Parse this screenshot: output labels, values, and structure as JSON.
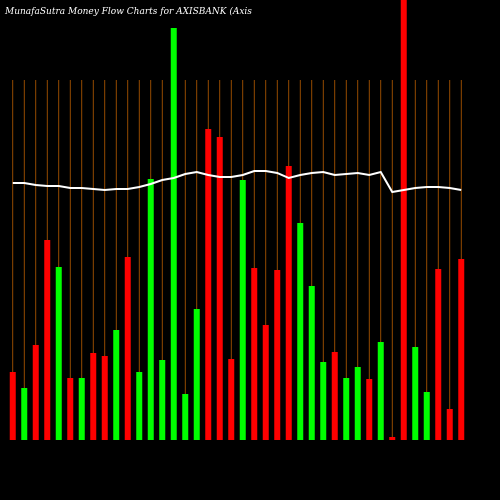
{
  "chart_data": {
    "type": "bar",
    "title": "MunafaSutra  Money Flow  Charts for AXISBANK  (Axis",
    "categories": [
      null,
      null,
      null,
      null,
      null,
      null,
      null,
      null,
      null,
      null,
      null,
      null,
      null,
      null,
      null,
      null,
      null,
      null,
      null,
      null,
      null,
      null,
      null,
      null,
      null,
      null,
      null,
      null,
      null,
      null,
      null,
      null,
      null,
      null,
      null,
      null,
      null,
      null,
      null,
      null
    ],
    "ylim": [
      0,
      440
    ],
    "series": [
      {
        "color": "bars",
        "values": [
          68,
          52,
          95,
          200,
          173,
          62,
          62,
          87,
          84,
          110,
          183,
          68,
          261,
          80,
          412,
          46,
          131,
          311,
          303,
          81,
          260,
          172,
          115,
          170,
          274,
          217,
          154,
          78,
          88,
          62,
          73,
          61,
          98,
          3,
          445,
          93,
          48,
          171,
          31,
          181
        ],
        "colors": [
          "#ff0000",
          "#00ff00",
          "#ff0000",
          "#ff0000",
          "#00ff00",
          "#ff0000",
          "#00ff00",
          "#ff0000",
          "#ff0000",
          "#00ff00",
          "#ff0000",
          "#00ff00",
          "#00ff00",
          "#00ff00",
          "#00ff00",
          "#00ff00",
          "#00ff00",
          "#ff0000",
          "#ff0000",
          "#ff0000",
          "#00ff00",
          "#ff0000",
          "#ff0000",
          "#ff0000",
          "#ff0000",
          "#00ff00",
          "#00ff00",
          "#00ff00",
          "#ff0000",
          "#00ff00",
          "#00ff00",
          "#ff0000",
          "#00ff00",
          "#ff0000",
          "#ff0000",
          "#00ff00",
          "#00ff00",
          "#ff0000",
          "#ff0000",
          "#ff0000"
        ]
      },
      {
        "type": "line",
        "color": "#ffffff",
        "values": [
          257,
          257,
          255,
          254,
          254,
          252,
          252,
          251,
          250,
          251,
          251,
          253,
          256,
          260,
          262,
          266,
          268,
          265,
          263,
          263,
          265,
          269,
          269,
          267,
          262,
          265,
          267,
          268,
          265,
          266,
          267,
          265,
          268,
          248,
          250,
          252,
          253,
          253,
          252,
          250
        ]
      }
    ]
  }
}
